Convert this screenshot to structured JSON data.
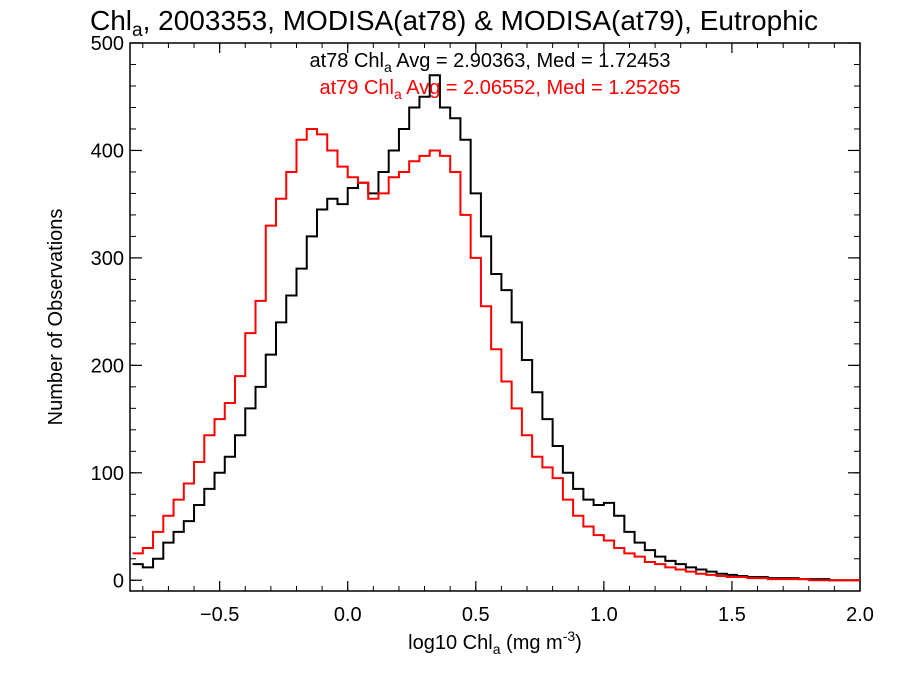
{
  "chart_data": {
    "type": "line",
    "title": "Chl",
    "title_sub": "a",
    "title_rest": ", 2003353, MODISA(at78) & MODISA(at79), Eutrophic",
    "xlabel_pre": "log10 Chl",
    "xlabel_sub": "a",
    "xlabel_mid": " (mg m",
    "xlabel_sup": "-3",
    "xlabel_post": ")",
    "ylabel": "Number of Observations",
    "xlim": [
      -0.85,
      2.0
    ],
    "ylim": [
      -10,
      500
    ],
    "x_ticks": [
      -0.5,
      0.0,
      0.5,
      1.0,
      1.5,
      2.0
    ],
    "x_tick_labels": [
      "−0.5",
      "0.0",
      "0.5",
      "1.0",
      "1.5",
      "2.0"
    ],
    "y_ticks": [
      0,
      100,
      200,
      300,
      400,
      500
    ],
    "y_tick_labels": [
      "0",
      "100",
      "200",
      "300",
      "400",
      "500"
    ],
    "step": "histogram",
    "series": [
      {
        "color": "#000000",
        "stat_label_pre": "at78 Chl",
        "stat_label_sub": "a",
        "stat_label_post": " Avg = 2.90363, Med = 1.72453",
        "x": [
          -0.84,
          -0.8,
          -0.76,
          -0.72,
          -0.68,
          -0.64,
          -0.6,
          -0.56,
          -0.52,
          -0.48,
          -0.44,
          -0.4,
          -0.36,
          -0.32,
          -0.28,
          -0.24,
          -0.2,
          -0.16,
          -0.12,
          -0.08,
          -0.04,
          0.0,
          0.04,
          0.08,
          0.12,
          0.16,
          0.2,
          0.24,
          0.28,
          0.32,
          0.36,
          0.4,
          0.44,
          0.48,
          0.52,
          0.56,
          0.6,
          0.64,
          0.68,
          0.72,
          0.76,
          0.8,
          0.84,
          0.88,
          0.92,
          0.96,
          1.0,
          1.04,
          1.08,
          1.12,
          1.16,
          1.2,
          1.24,
          1.28,
          1.32,
          1.36,
          1.4,
          1.44,
          1.48,
          1.52,
          1.56,
          1.6,
          1.64,
          1.68,
          1.72,
          1.76,
          1.8,
          1.84,
          1.88,
          1.92,
          1.96,
          2.0
        ],
        "y": [
          15,
          12,
          20,
          35,
          45,
          55,
          70,
          85,
          100,
          115,
          135,
          160,
          180,
          210,
          240,
          265,
          290,
          320,
          345,
          355,
          350,
          365,
          370,
          360,
          380,
          400,
          420,
          440,
          450,
          470,
          440,
          430,
          410,
          360,
          320,
          285,
          270,
          240,
          205,
          175,
          150,
          125,
          100,
          85,
          75,
          70,
          72,
          60,
          45,
          35,
          28,
          22,
          18,
          15,
          12,
          10,
          8,
          6,
          5,
          4,
          3,
          3,
          2,
          2,
          2,
          1,
          1,
          1,
          0,
          0,
          0,
          0
        ]
      },
      {
        "color": "#ff0000",
        "stat_label_pre": "at79 Chl",
        "stat_label_sub": "a",
        "stat_label_post": " Avg = 2.06552, Med = 1.25265",
        "x": [
          -0.84,
          -0.8,
          -0.76,
          -0.72,
          -0.68,
          -0.64,
          -0.6,
          -0.56,
          -0.52,
          -0.48,
          -0.44,
          -0.4,
          -0.36,
          -0.32,
          -0.28,
          -0.24,
          -0.2,
          -0.16,
          -0.12,
          -0.08,
          -0.04,
          0.0,
          0.04,
          0.08,
          0.12,
          0.16,
          0.2,
          0.24,
          0.28,
          0.32,
          0.36,
          0.4,
          0.44,
          0.48,
          0.52,
          0.56,
          0.6,
          0.64,
          0.68,
          0.72,
          0.76,
          0.8,
          0.84,
          0.88,
          0.92,
          0.96,
          1.0,
          1.04,
          1.08,
          1.12,
          1.16,
          1.2,
          1.24,
          1.28,
          1.32,
          1.36,
          1.4,
          1.44,
          1.48,
          1.52,
          1.56,
          1.6,
          1.64,
          1.68,
          1.72,
          1.76,
          1.8,
          1.84,
          1.88,
          1.92,
          1.96,
          2.0
        ],
        "y": [
          25,
          30,
          45,
          60,
          75,
          90,
          110,
          135,
          150,
          165,
          190,
          230,
          260,
          330,
          355,
          380,
          410,
          420,
          415,
          400,
          385,
          375,
          370,
          355,
          360,
          375,
          380,
          390,
          395,
          400,
          395,
          380,
          340,
          300,
          255,
          215,
          185,
          160,
          135,
          115,
          105,
          95,
          75,
          60,
          50,
          42,
          37,
          30,
          25,
          22,
          17,
          15,
          12,
          10,
          8,
          6,
          5,
          4,
          3,
          3,
          2,
          2,
          1,
          1,
          1,
          1,
          0,
          0,
          0,
          0,
          0,
          0
        ]
      }
    ]
  }
}
